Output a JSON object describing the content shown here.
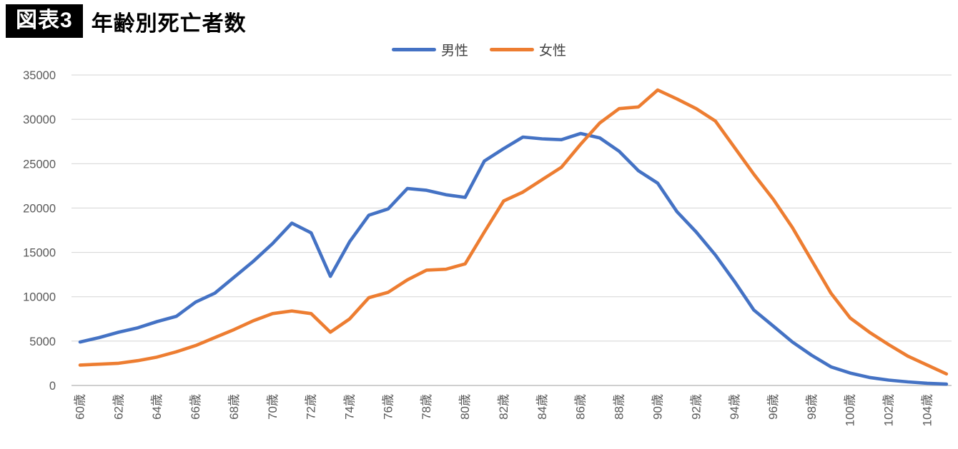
{
  "header": {
    "badge": "図表3",
    "title": "年齢別死亡者数"
  },
  "chart_data": {
    "type": "line",
    "title": "年齢別死亡者数",
    "xlabel": "",
    "ylabel": "",
    "x_unit_suffix": "歳",
    "ages": [
      60,
      61,
      62,
      63,
      64,
      65,
      66,
      67,
      68,
      69,
      70,
      71,
      72,
      73,
      74,
      75,
      76,
      77,
      78,
      79,
      80,
      81,
      82,
      83,
      84,
      85,
      86,
      87,
      88,
      89,
      90,
      91,
      92,
      93,
      94,
      95,
      96,
      97,
      98,
      99,
      100,
      101,
      102,
      103,
      104,
      105
    ],
    "x_tick_interval": 2,
    "x_tick_labels": [
      "60歳",
      "62歳",
      "64歳",
      "66歳",
      "68歳",
      "70歳",
      "72歳",
      "74歳",
      "76歳",
      "78歳",
      "80歳",
      "82歳",
      "84歳",
      "86歳",
      "88歳",
      "90歳",
      "92歳",
      "94歳",
      "96歳",
      "98歳",
      "100歳",
      "102歳",
      "104歳"
    ],
    "series": [
      {
        "name": "男性",
        "color": "#4472C4",
        "values": [
          4900,
          5400,
          6000,
          6500,
          7200,
          7800,
          9400,
          10400,
          12200,
          14000,
          16000,
          18300,
          17200,
          12300,
          16200,
          19200,
          19900,
          22200,
          22000,
          21500,
          21200,
          25300,
          26700,
          28000,
          27800,
          27700,
          28400,
          27900,
          26400,
          24200,
          22800,
          19600,
          17300,
          14700,
          11700,
          8500,
          6700,
          4900,
          3400,
          2100,
          1400,
          900,
          600,
          400,
          250,
          150
        ]
      },
      {
        "name": "女性",
        "color": "#ED7D31",
        "values": [
          2300,
          2400,
          2500,
          2800,
          3200,
          3800,
          4500,
          5400,
          6300,
          7300,
          8100,
          8400,
          8100,
          6000,
          7500,
          9900,
          10500,
          11900,
          13000,
          13100,
          13700,
          17300,
          20800,
          21800,
          23200,
          24600,
          27200,
          29600,
          31200,
          31400,
          33300,
          32300,
          31200,
          29800,
          26800,
          23800,
          21000,
          17800,
          14100,
          10400,
          7600,
          6000,
          4600,
          3300,
          2300,
          1300
        ]
      }
    ],
    "ylim": [
      0,
      35000
    ],
    "y_tick_step": 5000,
    "y_tick_labels": [
      "0",
      "5000",
      "10000",
      "15000",
      "20000",
      "25000",
      "30000",
      "35000"
    ],
    "grid": "horizontal",
    "gridline_color": "#d9d9d9",
    "axis_line_color": "#bfbfbf",
    "tick_label_color": "#595959",
    "legend_position": "top"
  }
}
